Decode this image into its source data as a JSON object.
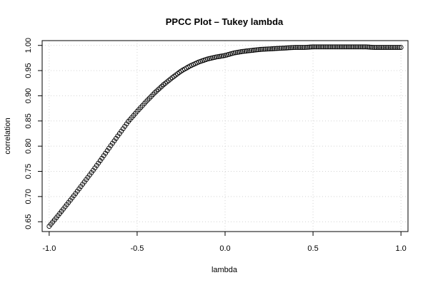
{
  "chart_data": {
    "type": "scatter",
    "title": "PPCC Plot – Tukey lambda",
    "xlabel": "lambda",
    "ylabel": "correlation",
    "xlim": [
      -1.04,
      1.04
    ],
    "ylim": [
      0.6305,
      1.0095
    ],
    "x_ticks": [
      -1.0,
      -0.5,
      0.0,
      0.5,
      1.0
    ],
    "x_tick_labels": [
      "-1.0",
      "-0.5",
      "0.0",
      "0.5",
      "1.0"
    ],
    "y_ticks": [
      0.65,
      0.7,
      0.75,
      0.8,
      0.85,
      0.9,
      0.95,
      1.0
    ],
    "y_tick_labels": [
      "0.65",
      "0.70",
      "0.75",
      "0.80",
      "0.85",
      "0.90",
      "0.95",
      "1.00"
    ],
    "grid": true,
    "marker": "open-circle",
    "colors": {
      "points": "#000000",
      "grid": "#d3d3d3",
      "frame": "#000000"
    },
    "series": [
      {
        "x": [
          -1.0,
          -0.95,
          -0.9,
          -0.85,
          -0.8,
          -0.75,
          -0.7,
          -0.65,
          -0.6,
          -0.55,
          -0.5,
          -0.45,
          -0.4,
          -0.35,
          -0.3,
          -0.25,
          -0.2,
          -0.15,
          -0.1,
          -0.05,
          0.0,
          0.05,
          0.1,
          0.15,
          0.2,
          0.25,
          0.3,
          0.35,
          0.4,
          0.45,
          0.5,
          0.55,
          0.6,
          0.65,
          0.7,
          0.75,
          0.8,
          0.85,
          0.9,
          0.95,
          1.0
        ],
        "y": [
          0.641,
          0.662,
          0.684,
          0.706,
          0.729,
          0.752,
          0.776,
          0.801,
          0.825,
          0.849,
          0.869,
          0.888,
          0.906,
          0.922,
          0.936,
          0.949,
          0.959,
          0.967,
          0.973,
          0.977,
          0.98,
          0.985,
          0.988,
          0.99,
          0.992,
          0.993,
          0.994,
          0.995,
          0.996,
          0.996,
          0.997,
          0.997,
          0.997,
          0.997,
          0.997,
          0.997,
          0.997,
          0.996,
          0.996,
          0.996,
          0.996
        ]
      }
    ]
  }
}
